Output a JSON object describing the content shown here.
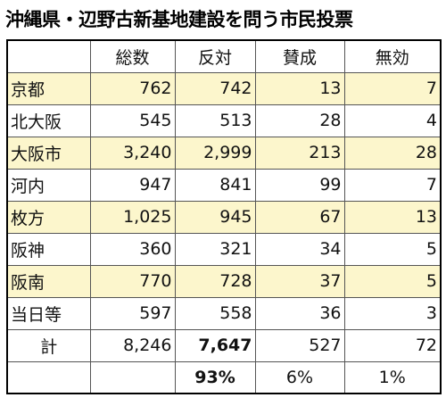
{
  "title": "沖縄県・辺野古新基地建設を問う市民投票",
  "table": {
    "header": [
      "総数",
      "反対",
      "賛成",
      "無効"
    ],
    "rows": [
      [
        "京都",
        "762",
        "742",
        "13",
        "7"
      ],
      [
        "北大阪",
        "545",
        "513",
        "28",
        "4"
      ],
      [
        "大阪市",
        "3,240",
        "2,999",
        "213",
        "28"
      ],
      [
        "河内",
        "947",
        "841",
        "99",
        "7"
      ],
      [
        "枚方",
        "1,025",
        "945",
        "67",
        "13"
      ],
      [
        "阪神",
        "360",
        "321",
        "34",
        "5"
      ],
      [
        "阪南",
        "770",
        "728",
        "37",
        "5"
      ],
      [
        "当日等",
        "597",
        "558",
        "36",
        "3"
      ]
    ],
    "total": [
      "計",
      "8,246",
      "7,647",
      "527",
      "72"
    ],
    "percent": [
      "93%",
      "6%",
      "1%"
    ]
  }
}
